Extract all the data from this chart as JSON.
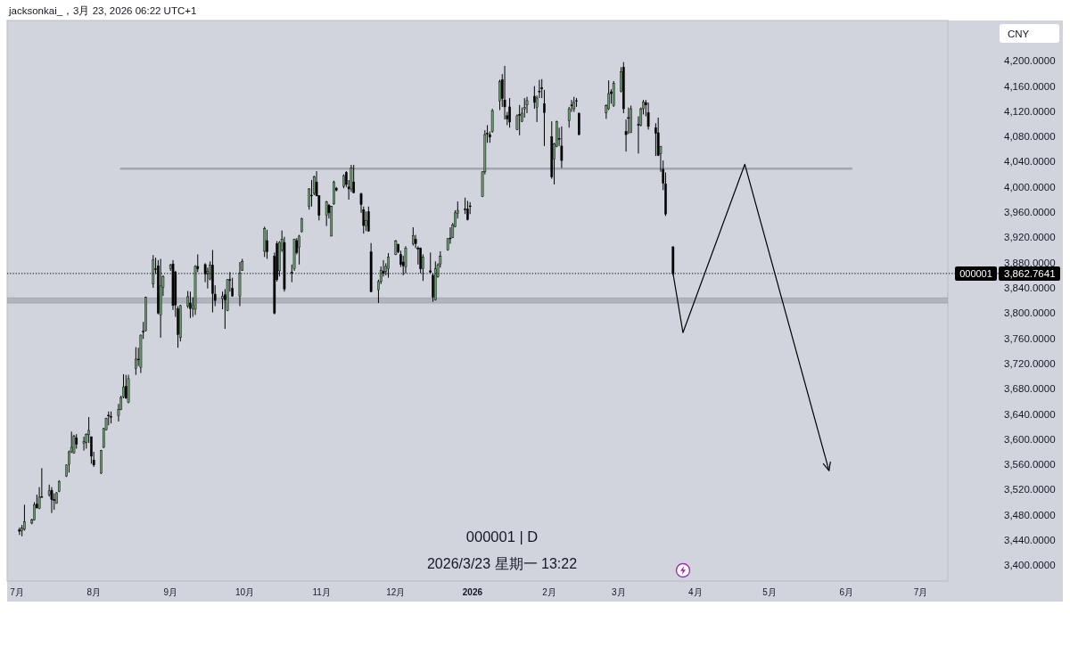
{
  "chart_data": {
    "type": "candlestick",
    "title": "000001 | D",
    "subtitle": "2026/3/23 星期一 13:22",
    "ylabel": "CNY",
    "annotations": [
      "jacksonkai_，3月 23, 2026 06:22 UTC+1",
      "000001"
    ],
    "xlim": [
      "2025-06-27",
      "2026-07-12"
    ],
    "xticks": [
      {
        "value": "2025-07-01",
        "label": "7月"
      },
      {
        "value": "2025-08-01",
        "label": "8月"
      },
      {
        "value": "2025-09-01",
        "label": "9月"
      },
      {
        "value": "2025-10-01",
        "label": "10月"
      },
      {
        "value": "2025-11-01",
        "label": "11月"
      },
      {
        "value": "2025-12-01",
        "label": "12月"
      },
      {
        "value": "2026-01-01",
        "label": "2026"
      },
      {
        "value": "2026-02-01",
        "label": "2月"
      },
      {
        "value": "2026-03-01",
        "label": "3月"
      },
      {
        "value": "2026-04-01",
        "label": "4月"
      },
      {
        "value": "2026-05-01",
        "label": "5月"
      },
      {
        "value": "2026-06-01",
        "label": "6月"
      },
      {
        "value": "2026-07-01",
        "label": "7月"
      }
    ],
    "ylim": [
      3375,
      4264
    ],
    "yticks": [
      {
        "value": 3400,
        "label": "3,400.0000"
      },
      {
        "value": 3440,
        "label": "3,440.0000"
      },
      {
        "value": 3480,
        "label": "3,480.0000"
      },
      {
        "value": 3520,
        "label": "3,520.0000"
      },
      {
        "value": 3560,
        "label": "3,560.0000"
      },
      {
        "value": 3600,
        "label": "3,600.0000"
      },
      {
        "value": 3640,
        "label": "3,640.0000"
      },
      {
        "value": 3680,
        "label": "3,680.0000"
      },
      {
        "value": 3720,
        "label": "3,720.0000"
      },
      {
        "value": 3760,
        "label": "3,760.0000"
      },
      {
        "value": 3800,
        "label": "3,800.0000"
      },
      {
        "value": 3840,
        "label": "3,840.0000"
      },
      {
        "value": 3880,
        "label": "3,880.0000"
      },
      {
        "value": 3920,
        "label": "3,920.0000"
      },
      {
        "value": 3960,
        "label": "3,960.0000"
      },
      {
        "value": 4000,
        "label": "4,000.0000"
      },
      {
        "value": 4040,
        "label": "4,040.0000"
      },
      {
        "value": 4080,
        "label": "4,080.0000"
      },
      {
        "value": 4120,
        "label": "4,120.0000"
      },
      {
        "value": 4160,
        "label": "4,160.0000"
      },
      {
        "value": 4200,
        "label": "4,200.0000"
      }
    ],
    "series": [
      {
        "x": [
          "2025-07-02",
          "2025-07-03",
          "2025-07-04",
          "2025-07-07",
          "2025-07-08",
          "2025-07-09",
          "2025-07-10",
          "2025-07-11",
          "2025-07-14",
          "2025-07-15",
          "2025-07-16",
          "2025-07-17",
          "2025-07-18",
          "2025-07-21",
          "2025-07-22",
          "2025-07-23",
          "2025-07-24",
          "2025-07-25",
          "2025-07-28",
          "2025-07-29",
          "2025-07-30",
          "2025-07-31",
          "2025-08-01",
          "2025-08-04",
          "2025-08-05",
          "2025-08-06",
          "2025-08-07",
          "2025-08-08",
          "2025-08-11",
          "2025-08-12",
          "2025-08-13",
          "2025-08-14",
          "2025-08-15",
          "2025-08-18",
          "2025-08-19",
          "2025-08-20",
          "2025-08-21",
          "2025-08-22",
          "2025-08-25",
          "2025-08-26",
          "2025-08-27",
          "2025-08-28",
          "2025-08-29",
          "2025-09-01",
          "2025-09-02",
          "2025-09-03",
          "2025-09-04",
          "2025-09-05",
          "2025-09-08",
          "2025-09-09",
          "2025-09-10",
          "2025-09-11",
          "2025-09-12",
          "2025-09-15",
          "2025-09-16",
          "2025-09-17",
          "2025-09-18",
          "2025-09-19",
          "2025-09-22",
          "2025-09-23",
          "2025-09-24",
          "2025-09-25",
          "2025-09-26",
          "2025-09-29",
          "2025-09-30",
          "2025-10-09",
          "2025-10-10",
          "2025-10-13",
          "2025-10-14",
          "2025-10-15",
          "2025-10-16",
          "2025-10-17",
          "2025-10-20",
          "2025-10-21",
          "2025-10-22",
          "2025-10-23",
          "2025-10-24",
          "2025-10-27",
          "2025-10-28",
          "2025-10-29",
          "2025-10-30",
          "2025-10-31",
          "2025-11-03",
          "2025-11-04",
          "2025-11-05",
          "2025-11-06",
          "2025-11-07",
          "2025-11-10",
          "2025-11-11",
          "2025-11-12",
          "2025-11-13",
          "2025-11-14",
          "2025-11-17",
          "2025-11-18",
          "2025-11-19",
          "2025-11-20",
          "2025-11-21",
          "2025-11-24",
          "2025-11-25",
          "2025-11-26",
          "2025-11-27",
          "2025-11-28",
          "2025-12-01",
          "2025-12-02",
          "2025-12-03",
          "2025-12-04",
          "2025-12-05",
          "2025-12-08",
          "2025-12-09",
          "2025-12-10",
          "2025-12-11",
          "2025-12-12",
          "2025-12-15",
          "2025-12-16",
          "2025-12-17",
          "2025-12-18",
          "2025-12-19",
          "2025-12-22",
          "2025-12-23",
          "2025-12-24",
          "2025-12-25",
          "2025-12-26",
          "2025-12-29",
          "2025-12-30",
          "2025-12-31",
          "2026-01-05",
          "2026-01-06",
          "2026-01-07",
          "2026-01-08",
          "2026-01-09",
          "2026-01-12",
          "2026-01-13",
          "2026-01-14",
          "2026-01-15",
          "2026-01-16",
          "2026-01-19",
          "2026-01-20",
          "2026-01-21",
          "2026-01-22",
          "2026-01-23",
          "2026-01-26",
          "2026-01-27",
          "2026-01-28",
          "2026-01-29",
          "2026-01-30",
          "2026-02-02",
          "2026-02-03",
          "2026-02-04",
          "2026-02-05",
          "2026-02-06",
          "2026-02-09",
          "2026-02-10",
          "2026-02-11",
          "2026-02-12",
          "2026-02-13",
          "2026-02-24",
          "2026-02-25",
          "2026-02-26",
          "2026-02-27",
          "2026-03-02",
          "2026-03-03",
          "2026-03-04",
          "2026-03-05",
          "2026-03-06",
          "2026-03-09",
          "2026-03-10",
          "2026-03-11",
          "2026-03-12",
          "2026-03-13",
          "2026-03-16",
          "2026-03-17",
          "2026-03-18",
          "2026-03-19",
          "2026-03-20",
          "2026-03-23"
        ],
        "ohlc": [
          [
            3456,
            3460,
            3448,
            3454
          ],
          [
            3455,
            3464,
            3446,
            3459
          ],
          [
            3457,
            3496,
            3455,
            3469
          ],
          [
            3467,
            3474,
            3465,
            3472
          ],
          [
            3472,
            3500,
            3471,
            3496
          ],
          [
            3497,
            3512,
            3490,
            3491
          ],
          [
            3490,
            3524,
            3489,
            3508
          ],
          [
            3509,
            3554,
            3507,
            3509
          ],
          [
            3512,
            3528,
            3509,
            3518
          ],
          [
            3519,
            3524,
            3483,
            3504
          ],
          [
            3504,
            3514,
            3488,
            3504
          ],
          [
            3498,
            3516,
            3498,
            3515
          ],
          [
            3517,
            3535,
            3516,
            3533
          ],
          [
            3541,
            3560,
            3540,
            3559
          ],
          [
            3560,
            3582,
            3547,
            3580
          ],
          [
            3580,
            3612,
            3578,
            3587
          ],
          [
            3578,
            3607,
            3577,
            3605
          ],
          [
            3602,
            3608,
            3585,
            3592
          ],
          [
            3593,
            3604,
            3582,
            3596
          ],
          [
            3595,
            3609,
            3585,
            3608
          ],
          [
            3607,
            3635,
            3594,
            3614
          ],
          [
            3604,
            3604,
            3561,
            3573
          ],
          [
            3567,
            3580,
            3556,
            3559
          ],
          [
            3546,
            3583,
            3545,
            3582
          ],
          [
            3587,
            3618,
            3586,
            3617
          ],
          [
            3615,
            3634,
            3614,
            3633
          ],
          [
            3638,
            3644,
            3622,
            3638
          ],
          [
            3636,
            3644,
            3625,
            3636
          ],
          [
            3637,
            3656,
            3628,
            3647
          ],
          [
            3647,
            3669,
            3646,
            3666
          ],
          [
            3667,
            3703,
            3665,
            3683
          ],
          [
            3684,
            3702,
            3664,
            3665
          ],
          [
            3658,
            3702,
            3657,
            3696
          ],
          [
            3712,
            3746,
            3702,
            3727
          ],
          [
            3727,
            3745,
            3716,
            3727
          ],
          [
            3714,
            3766,
            3705,
            3765
          ],
          [
            3771,
            3786,
            3759,
            3771
          ],
          [
            3772,
            3826,
            3771,
            3825
          ],
          [
            3846,
            3892,
            3840,
            3884
          ],
          [
            3870,
            3888,
            3862,
            3870
          ],
          [
            3875,
            3884,
            3798,
            3800
          ],
          [
            3797,
            3886,
            3761,
            3843
          ],
          [
            3841,
            3860,
            3827,
            3858
          ],
          [
            3870,
            3878,
            3867,
            3876
          ],
          [
            3878,
            3884,
            3805,
            3812
          ],
          [
            3865,
            3867,
            3794,
            3813
          ],
          [
            3807,
            3811,
            3745,
            3766
          ],
          [
            3761,
            3813,
            3755,
            3812
          ],
          [
            3811,
            3835,
            3808,
            3826
          ],
          [
            3816,
            3834,
            3792,
            3807
          ],
          [
            3807,
            3825,
            3794,
            3812
          ],
          [
            3806,
            3876,
            3797,
            3874
          ],
          [
            3874,
            3893,
            3865,
            3870
          ],
          [
            3877,
            3879,
            3849,
            3862
          ],
          [
            3862,
            3872,
            3839,
            3866
          ],
          [
            3854,
            3882,
            3852,
            3876
          ],
          [
            3876,
            3900,
            3801,
            3831
          ],
          [
            3830,
            3844,
            3811,
            3820
          ],
          [
            3823,
            3834,
            3806,
            3827
          ],
          [
            3829,
            3838,
            3775,
            3821
          ],
          [
            3804,
            3854,
            3803,
            3853
          ],
          [
            3853,
            3865,
            3834,
            3853
          ],
          [
            3839,
            3856,
            3826,
            3827
          ],
          [
            3827,
            3881,
            3811,
            3863
          ],
          [
            3868,
            3886,
            3867,
            3882
          ],
          [
            3898,
            3937,
            3889,
            3934
          ],
          [
            3915,
            3932,
            3886,
            3897
          ],
          [
            3890,
            3896,
            3798,
            3800
          ],
          [
            3910,
            3914,
            3850,
            3853
          ],
          [
            3867,
            3914,
            3858,
            3912
          ],
          [
            3900,
            3931,
            3897,
            3917
          ],
          [
            3912,
            3921,
            3834,
            3838
          ],
          [
            3865,
            3877,
            3849,
            3865
          ],
          [
            3870,
            3918,
            3867,
            3917
          ],
          [
            3915,
            3919,
            3893,
            3896
          ],
          [
            3904,
            3924,
            3877,
            3922
          ],
          [
            3929,
            3951,
            3928,
            3950
          ],
          [
            3969,
            3998,
            3964,
            3997
          ],
          [
            3987,
            4011,
            3969,
            3987
          ],
          [
            3990,
            4018,
            3987,
            4016
          ],
          [
            4008,
            4025,
            3985,
            3986
          ],
          [
            3986,
            3987,
            3947,
            3955
          ],
          [
            3955,
            3978,
            3938,
            3976
          ],
          [
            3971,
            3973,
            3950,
            3959
          ],
          [
            3922,
            3970,
            3922,
            3969
          ],
          [
            3973,
            4010,
            3972,
            4008
          ],
          [
            3998,
            4000,
            3993,
            3995
          ],
          [
            4001,
            4020,
            3998,
            4018
          ],
          [
            4023,
            4025,
            4000,
            4004
          ],
          [
            4000,
            4011,
            3980,
            3997
          ],
          [
            3996,
            4035,
            3992,
            4030
          ],
          [
            4008,
            4035,
            3990,
            3991
          ],
          [
            3989,
            3991,
            3959,
            3972
          ],
          [
            3964,
            3969,
            3926,
            3939
          ],
          [
            3938,
            3961,
            3930,
            3947
          ],
          [
            3961,
            3969,
            3929,
            3930
          ],
          [
            3897,
            3911,
            3833,
            3834
          ],
          [
            3837,
            3853,
            3816,
            3850
          ],
          [
            3850,
            3874,
            3846,
            3868
          ],
          [
            3866,
            3884,
            3858,
            3863
          ],
          [
            3866,
            3879,
            3860,
            3874
          ],
          [
            3870,
            3895,
            3856,
            3889
          ],
          [
            3893,
            3916,
            3892,
            3914
          ],
          [
            3909,
            3910,
            3895,
            3897
          ],
          [
            3893,
            3899,
            3873,
            3877
          ],
          [
            3881,
            3891,
            3860,
            3875
          ],
          [
            3873,
            3906,
            3863,
            3903
          ],
          [
            3910,
            3936,
            3907,
            3923
          ],
          [
            3917,
            3924,
            3903,
            3910
          ],
          [
            3903,
            3906,
            3877,
            3903
          ],
          [
            3903,
            3904,
            3863,
            3870
          ],
          [
            3870,
            3893,
            3851,
            3889
          ],
          [
            3867,
            3896,
            3863,
            3865
          ],
          [
            3860,
            3863,
            3818,
            3825
          ],
          [
            3821,
            3882,
            3820,
            3870
          ],
          [
            3858,
            3879,
            3856,
            3876
          ],
          [
            3878,
            3898,
            3872,
            3890
          ],
          [
            3900,
            3919,
            3899,
            3918
          ],
          [
            3919,
            3936,
            3910,
            3919
          ],
          [
            3920,
            3943,
            3919,
            3940
          ],
          [
            3937,
            3963,
            3936,
            3959
          ],
          [
            3958,
            3977,
            3950,
            3963
          ],
          [
            3965,
            3983,
            3957,
            3965
          ],
          [
            3965,
            3978,
            3947,
            3948
          ],
          [
            3970,
            3976,
            3957,
            3970
          ],
          [
            3985,
            4025,
            3984,
            4024
          ],
          [
            4024,
            4090,
            4020,
            4083
          ],
          [
            4085,
            4098,
            4070,
            4085
          ],
          [
            4083,
            4088,
            4070,
            4079
          ],
          [
            4088,
            4124,
            4086,
            4121
          ],
          [
            4136,
            4170,
            4122,
            4167
          ],
          [
            4170,
            4179,
            4127,
            4140
          ],
          [
            4138,
            4192,
            4107,
            4127
          ],
          [
            4113,
            4119,
            4098,
            4108
          ],
          [
            4127,
            4141,
            4094,
            4103
          ],
          [
            4091,
            4115,
            4090,
            4113
          ],
          [
            4115,
            4130,
            4082,
            4115
          ],
          [
            4104,
            4126,
            4103,
            4117
          ],
          [
            4123,
            4141,
            4110,
            4126
          ],
          [
            4130,
            4143,
            4117,
            4137
          ],
          [
            4144,
            4160,
            4124,
            4134
          ],
          [
            4126,
            4145,
            4103,
            4141
          ],
          [
            4152,
            4170,
            4141,
            4152
          ],
          [
            4157,
            4171,
            4141,
            4157
          ],
          [
            4132,
            4154,
            4065,
            4118
          ],
          [
            4080,
            4104,
            4013,
            4016
          ],
          [
            4044,
            4070,
            4004,
            4068
          ],
          [
            4064,
            4105,
            4063,
            4104
          ],
          [
            4077,
            4094,
            4065,
            4077
          ],
          [
            4065,
            4096,
            4030,
            4042
          ],
          [
            4105,
            4127,
            4094,
            4124
          ],
          [
            4130,
            4138,
            4119,
            4130
          ],
          [
            4124,
            4143,
            4119,
            4134
          ],
          [
            4137,
            4141,
            4127,
            4137
          ],
          [
            4117,
            4118,
            4082,
            4083
          ],
          [
            4118,
            4131,
            4108,
            4129
          ],
          [
            4124,
            4169,
            4122,
            4148
          ],
          [
            4151,
            4155,
            4132,
            4148
          ],
          [
            4129,
            4168,
            4127,
            4164
          ],
          [
            4152,
            4190,
            4150,
            4183
          ],
          [
            4190,
            4198,
            4117,
            4124
          ],
          [
            4088,
            4107,
            4056,
            4083
          ],
          [
            4110,
            4126,
            4084,
            4110
          ],
          [
            4086,
            4129,
            4086,
            4124
          ],
          [
            4099,
            4112,
            4053,
            4099
          ],
          [
            4098,
            4126,
            4096,
            4124
          ],
          [
            4124,
            4138,
            4115,
            4135
          ],
          [
            4134,
            4138,
            4112,
            4130
          ],
          [
            4118,
            4134,
            4091,
            4096
          ],
          [
            4094,
            4101,
            4049,
            4085
          ],
          [
            4086,
            4110,
            4049,
            4050
          ],
          [
            4053,
            4065,
            4024,
            4064
          ],
          [
            4028,
            4042,
            3995,
            4006
          ],
          [
            4005,
            4023,
            3954,
            3957
          ],
          [
            3905,
            3906,
            3860,
            3862.7641
          ]
        ],
        "colors": [
          "#000000",
          "#6a9a6e",
          "#6a9a6e",
          "#6a9a6e",
          "#6a9a6e",
          "#000000",
          "#6a9a6e",
          "#000000",
          "#6a9a6e",
          "#000000",
          "#000000",
          "#6a9a6e",
          "#6a9a6e",
          "#6a9a6e",
          "#6a9a6e",
          "#6a9a6e",
          "#6a9a6e",
          "#000000",
          "#6a9a6e",
          "#6a9a6e",
          "#6a9a6e",
          "#000000",
          "#000000",
          "#6a9a6e",
          "#6a9a6e",
          "#6a9a6e",
          "#000000",
          "#000000",
          "#6a9a6e",
          "#6a9a6e",
          "#6a9a6e",
          "#000000",
          "#6a9a6e",
          "#6a9a6e",
          "#000000",
          "#6a9a6e",
          "#000000",
          "#6a9a6e",
          "#6a9a6e",
          "#000000",
          "#000000",
          "#6a9a6e",
          "#6a9a6e",
          "#6a9a6e",
          "#000000",
          "#000000",
          "#000000",
          "#6a9a6e",
          "#6a9a6e",
          "#000000",
          "#6a9a6e",
          "#6a9a6e",
          "#000000",
          "#000000",
          "#6a9a6e",
          "#6a9a6e",
          "#000000",
          "#000000",
          "#6a9a6e",
          "#000000",
          "#6a9a6e",
          "#000000",
          "#000000",
          "#6a9a6e",
          "#6a9a6e",
          "#6a9a6e",
          "#000000",
          "#000000",
          "#000000",
          "#6a9a6e",
          "#6a9a6e",
          "#000000",
          "#000000",
          "#6a9a6e",
          "#000000",
          "#6a9a6e",
          "#6a9a6e",
          "#6a9a6e",
          "#000000",
          "#6a9a6e",
          "#000000",
          "#000000",
          "#6a9a6e",
          "#000000",
          "#6a9a6e",
          "#6a9a6e",
          "#000000",
          "#6a9a6e",
          "#000000",
          "#000000",
          "#6a9a6e",
          "#000000",
          "#000000",
          "#000000",
          "#6a9a6e",
          "#000000",
          "#000000",
          "#6a9a6e",
          "#6a9a6e",
          "#000000",
          "#6a9a6e",
          "#6a9a6e",
          "#6a9a6e",
          "#000000",
          "#000000",
          "#000000",
          "#6a9a6e",
          "#6a9a6e",
          "#000000",
          "#000000",
          "#000000",
          "#6a9a6e",
          "#000000",
          "#000000",
          "#6a9a6e",
          "#6a9a6e",
          "#6a9a6e",
          "#6a9a6e",
          "#000000",
          "#6a9a6e",
          "#6a9a6e",
          "#6a9a6e",
          "#000000",
          "#000000",
          "#000000",
          "#6a9a6e",
          "#6a9a6e",
          "#000000",
          "#000000",
          "#6a9a6e",
          "#6a9a6e",
          "#000000",
          "#000000",
          "#000000",
          "#000000",
          "#6a9a6e",
          "#000000",
          "#6a9a6e",
          "#6a9a6e",
          "#6a9a6e",
          "#000000",
          "#6a9a6e",
          "#000000",
          "#000000",
          "#000000",
          "#000000",
          "#6a9a6e",
          "#6a9a6e",
          "#000000",
          "#000000",
          "#6a9a6e",
          "#000000",
          "#6a9a6e",
          "#000000",
          "#000000",
          "#6a9a6e",
          "#6a9a6e",
          "#000000",
          "#6a9a6e",
          "#6a9a6e",
          "#000000",
          "#000000",
          "#000000",
          "#6a9a6e",
          "#000000",
          "#6a9a6e",
          "#6a9a6e",
          "#000000",
          "#000000",
          "#000000",
          "#000000",
          "#6a9a6e",
          "#000000",
          "#000000",
          "#000000"
        ]
      },
      {
        "type": "line",
        "x": [
          "2025-08-12",
          "2026-06-03"
        ],
        "values": [
          4029,
          4029
        ],
        "color": "#a3a6af"
      }
    ],
    "bands": [
      {
        "axis": "y",
        "from": 3816,
        "to": 3824,
        "color": "#a3a6af"
      }
    ],
    "ref_lines": [
      {
        "axis": "y",
        "value": 3862.7641,
        "label": "3,862.7641",
        "line_style": "dotted",
        "color": "#000000"
      }
    ]
  }
}
